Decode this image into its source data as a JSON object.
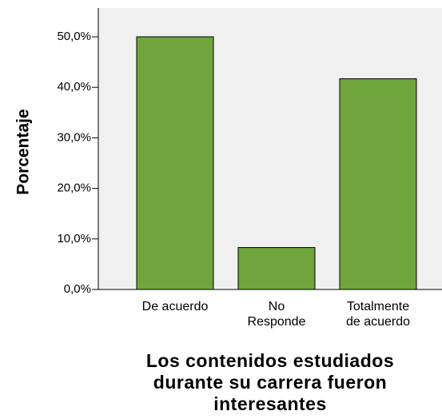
{
  "chart_data": {
    "type": "bar",
    "x_label": "Los contenidos estudiados\ndurante su carrera fueron\ninteresantes",
    "y_label": "Porcentaje",
    "categories": [
      "De acuerdo",
      "No\nResponde",
      "Totalmente\nde acuerdo"
    ],
    "values": [
      50,
      8.3,
      41.7
    ],
    "color": "#6fa53c",
    "ylim": [
      0,
      55.7
    ],
    "yticks": [
      {
        "value": 0,
        "label": "0,0%"
      },
      {
        "value": 10,
        "label": "10,0%"
      },
      {
        "value": 20,
        "label": "20,0%"
      },
      {
        "value": 30,
        "label": "30,0%"
      },
      {
        "value": 40,
        "label": "40,0%"
      },
      {
        "value": 50,
        "label": "50,0%"
      }
    ]
  }
}
